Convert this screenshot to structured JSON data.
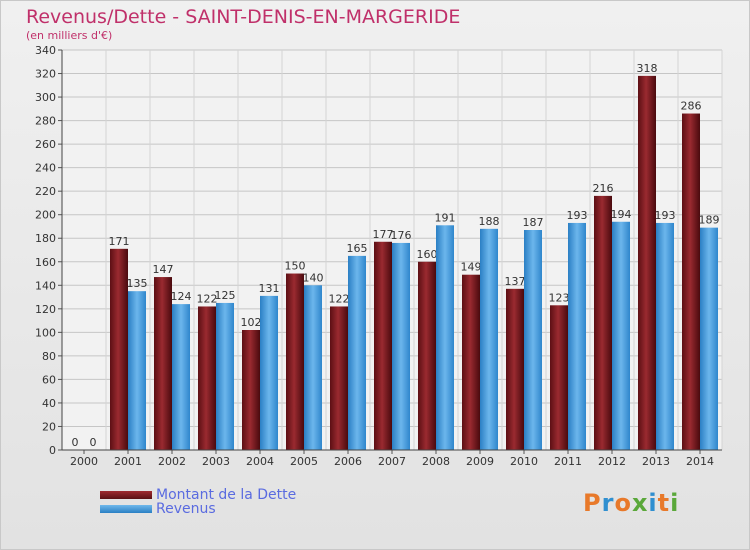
{
  "header": {
    "title": "Revenus/Dette - SAINT-DENIS-EN-MARGERIDE",
    "subtitle": "(en milliers d'€)"
  },
  "legend": {
    "items": [
      {
        "label": "Montant de la Dette",
        "color": "#7a1a1f"
      },
      {
        "label": "Revenus",
        "color": "#3a95d8"
      }
    ]
  },
  "logo": {
    "text": "Proxiti",
    "colors": [
      "#e8792a",
      "#2f8fd0",
      "#e8792a",
      "#5aa83a",
      "#2f8fd0",
      "#e8792a",
      "#5aa83a"
    ]
  },
  "chart_data": {
    "type": "bar",
    "title": "Revenus/Dette - SAINT-DENIS-EN-MARGERIDE",
    "subtitle": "(en milliers d'€)",
    "categories": [
      "2000",
      "2001",
      "2002",
      "2003",
      "2004",
      "2005",
      "2006",
      "2007",
      "2008",
      "2009",
      "2010",
      "2011",
      "2012",
      "2013",
      "2014"
    ],
    "series": [
      {
        "name": "Montant de la Dette",
        "color": "#7a1a1f",
        "values": [
          0,
          171,
          147,
          122,
          102,
          150,
          122,
          177,
          160,
          149,
          137,
          123,
          216,
          318,
          286
        ]
      },
      {
        "name": "Revenus",
        "color": "#3a95d8",
        "values": [
          0,
          135,
          124,
          125,
          131,
          140,
          165,
          176,
          191,
          188,
          187,
          193,
          194,
          193,
          189
        ]
      }
    ],
    "ylim": [
      0,
      340
    ],
    "yticks": [
      0,
      20,
      40,
      60,
      80,
      100,
      120,
      140,
      160,
      180,
      200,
      220,
      240,
      260,
      280,
      300,
      320,
      340
    ],
    "grid": true,
    "legend_position": "bottom-left"
  }
}
